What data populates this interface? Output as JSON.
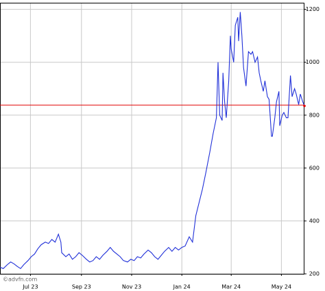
{
  "chart_data": {
    "type": "line",
    "watermark": "©advfn.com",
    "x": [
      -37,
      -33,
      -28,
      -24,
      -20,
      -16,
      -12,
      -8,
      -3,
      1,
      5,
      9,
      13,
      18,
      22,
      26,
      30,
      34,
      37,
      38,
      43,
      47,
      51,
      55,
      59,
      63,
      68,
      72,
      76,
      80,
      84,
      88,
      93,
      97,
      101,
      105,
      109,
      113,
      118,
      122,
      126,
      130,
      134,
      138,
      143,
      147,
      151,
      155,
      159,
      163,
      168,
      172,
      176,
      180,
      184,
      188,
      193,
      197,
      201,
      205,
      209,
      213,
      218,
      222,
      226,
      228,
      230,
      233,
      234,
      236,
      238,
      241,
      243,
      244,
      247,
      249,
      252,
      253,
      255,
      257,
      259,
      262,
      265,
      268,
      270,
      273,
      276,
      278,
      280,
      283,
      285,
      288,
      290,
      293,
      294,
      297,
      299,
      302,
      303,
      306,
      308,
      311,
      313,
      316,
      318,
      321,
      323,
      326,
      328,
      331,
      333
    ],
    "series": [
      {
        "color": "#1f2fd8",
        "values": [
          225,
          220,
          235,
          245,
          238,
          228,
          220,
          235,
          250,
          265,
          275,
          295,
          310,
          320,
          315,
          330,
          320,
          350,
          320,
          280,
          265,
          275,
          255,
          265,
          280,
          270,
          255,
          245,
          250,
          265,
          255,
          270,
          285,
          300,
          285,
          275,
          265,
          250,
          245,
          255,
          250,
          265,
          260,
          275,
          290,
          280,
          265,
          255,
          270,
          285,
          300,
          285,
          300,
          290,
          300,
          305,
          340,
          320,
          420,
          470,
          520,
          580,
          660,
          730,
          790,
          1000,
          800,
          780,
          960,
          850,
          790,
          930,
          1100,
          1050,
          1000,
          1140,
          1170,
          1080,
          1190,
          1100,
          980,
          910,
          1040,
          1030,
          1040,
          1000,
          1020,
          960,
          930,
          890,
          930,
          870,
          860,
          720,
          720,
          790,
          850,
          890,
          760,
          800,
          810,
          790,
          790,
          950,
          870,
          900,
          880,
          840,
          880,
          850,
          835
        ]
      }
    ],
    "reference_line": {
      "value": 838,
      "color": "#e00000"
    },
    "xlim": [
      -37,
      333
    ],
    "xticks": [
      {
        "value": 0,
        "label": "Jul 23"
      },
      {
        "value": 62,
        "label": "Sep 23"
      },
      {
        "value": 123,
        "label": "Nov 23"
      },
      {
        "value": 184,
        "label": "Jan 24"
      },
      {
        "value": 244,
        "label": "Mar 24"
      },
      {
        "value": 305,
        "label": "May 24"
      }
    ],
    "ylim": [
      200,
      1225
    ],
    "yticks": [
      200,
      400,
      600,
      800,
      1000,
      1200
    ],
    "grid": true
  }
}
